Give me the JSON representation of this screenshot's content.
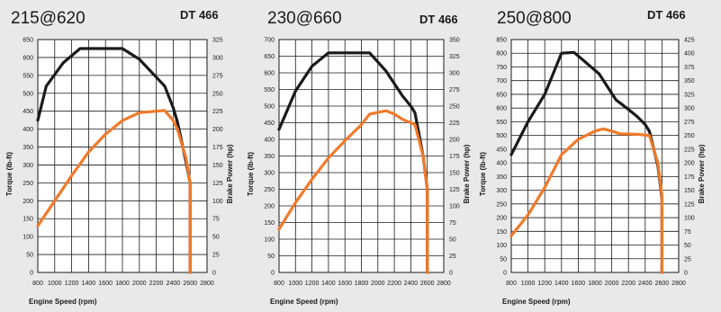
{
  "chart_data": [
    {
      "type": "line",
      "title": "215@620",
      "model": "DT 466",
      "xlabel": "Engine Speed (rpm)",
      "ylabel_left": "Torque (lb-ft)",
      "ylabel_right": "Brake Power (hp)",
      "xticks": [
        800,
        1000,
        1200,
        1400,
        1600,
        1800,
        2000,
        2200,
        2400,
        2600,
        2800
      ],
      "xlim": [
        800,
        2800
      ],
      "yticks_left": [
        0,
        50,
        100,
        150,
        200,
        250,
        300,
        350,
        400,
        450,
        500,
        550,
        600,
        650
      ],
      "ylim_left": [
        0,
        650
      ],
      "yticks_right": [
        0,
        25,
        50,
        75,
        100,
        125,
        150,
        175,
        200,
        225,
        250,
        275,
        300,
        325
      ],
      "ylim_right": [
        0,
        325
      ],
      "grid": true,
      "colors": {
        "torque": "#1a1a1a",
        "power": "#f07a2a"
      },
      "series": [
        {
          "axis": "left",
          "points": [
            [
              800,
              425
            ],
            [
              900,
              520
            ],
            [
              1100,
              585
            ],
            [
              1300,
              625
            ],
            [
              1800,
              625
            ],
            [
              2000,
              595
            ],
            [
              2200,
              545
            ],
            [
              2300,
              520
            ],
            [
              2400,
              460
            ],
            [
              2450,
              420
            ],
            [
              2550,
              310
            ],
            [
              2600,
              250
            ],
            [
              2600,
              0
            ]
          ]
        },
        {
          "axis": "right",
          "points": [
            [
              800,
              65
            ],
            [
              1000,
              100
            ],
            [
              1200,
              135
            ],
            [
              1400,
              168
            ],
            [
              1600,
              193
            ],
            [
              1800,
              212
            ],
            [
              2000,
              223
            ],
            [
              2200,
              225
            ],
            [
              2300,
              226
            ],
            [
              2400,
              212
            ],
            [
              2450,
              200
            ],
            [
              2550,
              160
            ],
            [
              2600,
              125
            ],
            [
              2600,
              0
            ]
          ]
        }
      ]
    },
    {
      "type": "line",
      "title": "230@660",
      "model": "DT 466",
      "xlabel": "Engine Speed (rpm)",
      "ylabel_left": "Torque (lb-ft)",
      "ylabel_right": "Brake Power (hp)",
      "xticks": [
        800,
        1000,
        1200,
        1400,
        1600,
        1800,
        2000,
        2200,
        2400,
        2600,
        2800
      ],
      "xlim": [
        800,
        2800
      ],
      "yticks_left": [
        0,
        50,
        100,
        150,
        200,
        250,
        300,
        350,
        400,
        450,
        500,
        550,
        600,
        650,
        700
      ],
      "ylim_left": [
        0,
        700
      ],
      "yticks_right": [
        0,
        25,
        50,
        75,
        100,
        125,
        150,
        175,
        200,
        225,
        250,
        275,
        300,
        325,
        350
      ],
      "ylim_right": [
        0,
        350
      ],
      "grid": true,
      "colors": {
        "torque": "#1a1a1a",
        "power": "#f07a2a"
      },
      "series": [
        {
          "axis": "left",
          "points": [
            [
              800,
              430
            ],
            [
              1000,
              545
            ],
            [
              1200,
              620
            ],
            [
              1400,
              660
            ],
            [
              1900,
              660
            ],
            [
              2100,
              605
            ],
            [
              2300,
              530
            ],
            [
              2400,
              500
            ],
            [
              2450,
              480
            ],
            [
              2550,
              350
            ],
            [
              2600,
              250
            ],
            [
              2600,
              0
            ]
          ]
        },
        {
          "axis": "right",
          "points": [
            [
              800,
              65
            ],
            [
              1000,
              105
            ],
            [
              1200,
              140
            ],
            [
              1400,
              172
            ],
            [
              1600,
              198
            ],
            [
              1800,
              222
            ],
            [
              1900,
              238
            ],
            [
              2100,
              243
            ],
            [
              2200,
              238
            ],
            [
              2300,
              230
            ],
            [
              2400,
              225
            ],
            [
              2450,
              222
            ],
            [
              2550,
              175
            ],
            [
              2600,
              125
            ],
            [
              2600,
              0
            ]
          ]
        }
      ]
    },
    {
      "type": "line",
      "title": "250@800",
      "model": "DT 466",
      "xlabel": "Engine Speed (rpm)",
      "ylabel_left": "Torque (lb-ft)",
      "ylabel_right": "Brake Power (hp)",
      "xticks": [
        800,
        1000,
        1200,
        1400,
        1600,
        1800,
        2000,
        2200,
        2400,
        2600,
        2800
      ],
      "xlim": [
        800,
        2800
      ],
      "yticks_left": [
        0,
        50,
        100,
        150,
        200,
        250,
        300,
        350,
        400,
        450,
        500,
        550,
        600,
        650,
        700,
        750,
        800,
        850
      ],
      "ylim_left": [
        0,
        850
      ],
      "yticks_right": [
        0,
        25,
        50,
        75,
        100,
        125,
        150,
        175,
        200,
        225,
        250,
        275,
        300,
        325,
        350,
        375,
        400,
        425
      ],
      "ylim_right": [
        0,
        425
      ],
      "grid": true,
      "colors": {
        "torque": "#1a1a1a",
        "power": "#f07a2a"
      },
      "series": [
        {
          "axis": "left",
          "points": [
            [
              800,
              430
            ],
            [
              1000,
              550
            ],
            [
              1200,
              650
            ],
            [
              1400,
              800
            ],
            [
              1550,
              803
            ],
            [
              1850,
              725
            ],
            [
              2050,
              630
            ],
            [
              2200,
              595
            ],
            [
              2300,
              570
            ],
            [
              2400,
              540
            ],
            [
              2450,
              515
            ],
            [
              2550,
              390
            ],
            [
              2600,
              270
            ],
            [
              2600,
              0
            ]
          ]
        },
        {
          "axis": "right",
          "points": [
            [
              800,
              67
            ],
            [
              1000,
              105
            ],
            [
              1200,
              155
            ],
            [
              1400,
              215
            ],
            [
              1600,
              243
            ],
            [
              1800,
              258
            ],
            [
              1900,
              262
            ],
            [
              2000,
              258
            ],
            [
              2100,
              253
            ],
            [
              2300,
              252
            ],
            [
              2450,
              250
            ],
            [
              2550,
              200
            ],
            [
              2600,
              140
            ],
            [
              2600,
              0
            ]
          ]
        }
      ]
    }
  ]
}
